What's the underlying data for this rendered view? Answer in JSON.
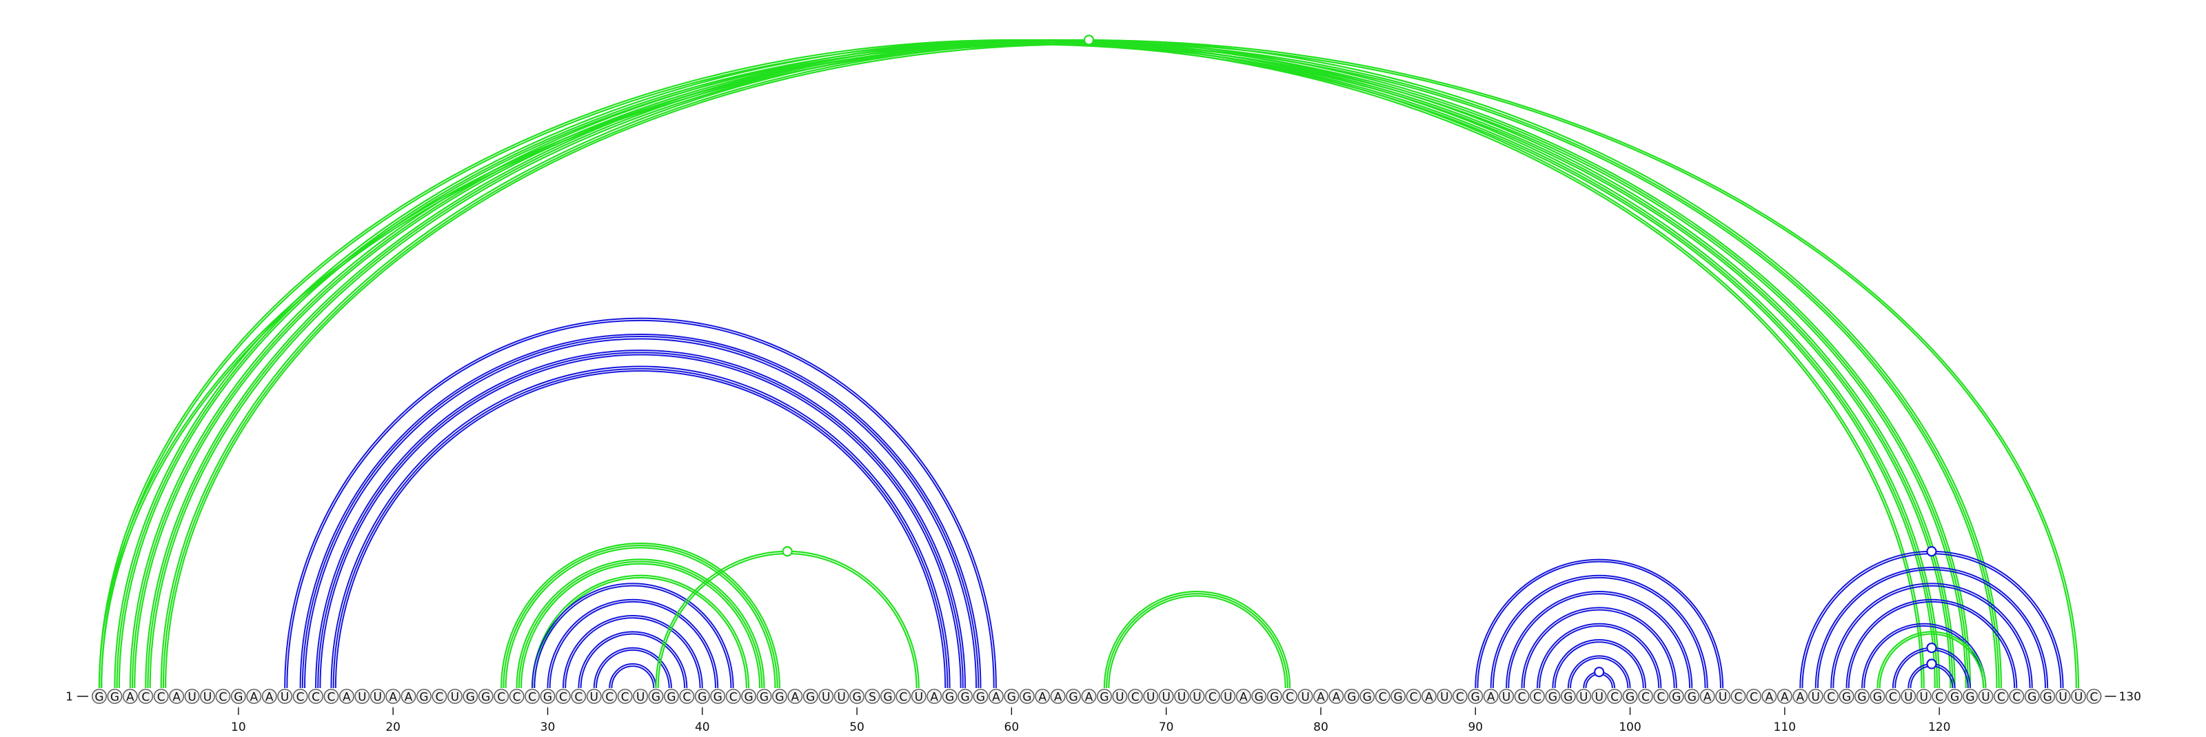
{
  "diagram": {
    "type": "rna-arc-diagram",
    "sequence": "GGACCAUUCGAAUCCCAUUAAGCUGGCCCGCCUCCUGGCGGCGGGAGUUGSGCUAGGGAGGAAGAGUCUUUUCUAGGCUAAGGCGCAUCGAUCCGGUUCGCCGGAUCCAAAUCGGGCUUCGGUCCGGUUC",
    "length": 130,
    "start_label": "1",
    "end_label": "130",
    "ticks": [
      "10",
      "20",
      "30",
      "40",
      "50",
      "60",
      "70",
      "80",
      "90",
      "100",
      "110",
      "120"
    ],
    "colors": {
      "green": "#22e01e",
      "blue": "#1616dd",
      "nucleotide_fill": "#f2f2f2",
      "nucleotide_stroke": "#555555",
      "text": "#111111"
    },
    "arcs": [
      {
        "i": 1,
        "j": 119,
        "color": "green",
        "strokes": 2
      },
      {
        "i": 2,
        "j": 120,
        "color": "green",
        "strokes": 3
      },
      {
        "i": 3,
        "j": 121,
        "color": "green",
        "strokes": 3
      },
      {
        "i": 4,
        "j": 122,
        "color": "green",
        "strokes": 3
      },
      {
        "i": 5,
        "j": 124,
        "color": "green",
        "strokes": 3
      },
      {
        "i": 1,
        "j": 129,
        "color": "green",
        "strokes": 2
      },
      {
        "i": 13,
        "j": 59,
        "color": "blue",
        "strokes": 2
      },
      {
        "i": 14,
        "j": 58,
        "color": "blue",
        "strokes": 3
      },
      {
        "i": 15,
        "j": 57,
        "color": "blue",
        "strokes": 3
      },
      {
        "i": 16,
        "j": 56,
        "color": "blue",
        "strokes": 3
      },
      {
        "i": 27,
        "j": 45,
        "color": "green",
        "strokes": 3
      },
      {
        "i": 28,
        "j": 44,
        "color": "green",
        "strokes": 3
      },
      {
        "i": 29,
        "j": 43,
        "color": "green",
        "strokes": 2
      },
      {
        "i": 29,
        "j": 42,
        "color": "blue",
        "strokes": 2
      },
      {
        "i": 30,
        "j": 41,
        "color": "blue",
        "strokes": 2
      },
      {
        "i": 31,
        "j": 40,
        "color": "blue",
        "strokes": 2
      },
      {
        "i": 32,
        "j": 39,
        "color": "blue",
        "strokes": 2
      },
      {
        "i": 33,
        "j": 38,
        "color": "blue",
        "strokes": 2
      },
      {
        "i": 34,
        "j": 37,
        "color": "blue",
        "strokes": 2
      },
      {
        "i": 37,
        "j": 54,
        "color": "green",
        "strokes": 2
      },
      {
        "i": 66,
        "j": 78,
        "color": "green",
        "strokes": 3
      },
      {
        "i": 90,
        "j": 106,
        "color": "blue",
        "strokes": 2
      },
      {
        "i": 91,
        "j": 105,
        "color": "blue",
        "strokes": 2
      },
      {
        "i": 92,
        "j": 104,
        "color": "blue",
        "strokes": 2
      },
      {
        "i": 93,
        "j": 103,
        "color": "blue",
        "strokes": 2
      },
      {
        "i": 94,
        "j": 102,
        "color": "blue",
        "strokes": 2
      },
      {
        "i": 95,
        "j": 101,
        "color": "blue",
        "strokes": 2
      },
      {
        "i": 96,
        "j": 100,
        "color": "blue",
        "strokes": 2
      },
      {
        "i": 97,
        "j": 99,
        "color": "blue",
        "strokes": 2
      },
      {
        "i": 111,
        "j": 128,
        "color": "blue",
        "strokes": 2
      },
      {
        "i": 112,
        "j": 127,
        "color": "blue",
        "strokes": 2
      },
      {
        "i": 113,
        "j": 126,
        "color": "blue",
        "strokes": 2
      },
      {
        "i": 114,
        "j": 125,
        "color": "blue",
        "strokes": 2
      },
      {
        "i": 115,
        "j": 123,
        "color": "blue",
        "strokes": 2
      },
      {
        "i": 116,
        "j": 123,
        "color": "green",
        "strokes": 2
      },
      {
        "i": 117,
        "j": 122,
        "color": "blue",
        "strokes": 2
      },
      {
        "i": 118,
        "j": 121,
        "color": "blue",
        "strokes": 2
      }
    ],
    "markers": [
      {
        "color": "green",
        "arc_i": 1,
        "arc_j": 129
      },
      {
        "color": "green",
        "arc_i": 37,
        "arc_j": 54
      },
      {
        "color": "blue",
        "arc_i": 97,
        "arc_j": 99
      },
      {
        "color": "blue",
        "arc_i": 111,
        "arc_j": 128
      },
      {
        "color": "blue",
        "arc_i": 117,
        "arc_j": 122
      },
      {
        "color": "blue",
        "arc_i": 118,
        "arc_j": 121
      }
    ]
  }
}
